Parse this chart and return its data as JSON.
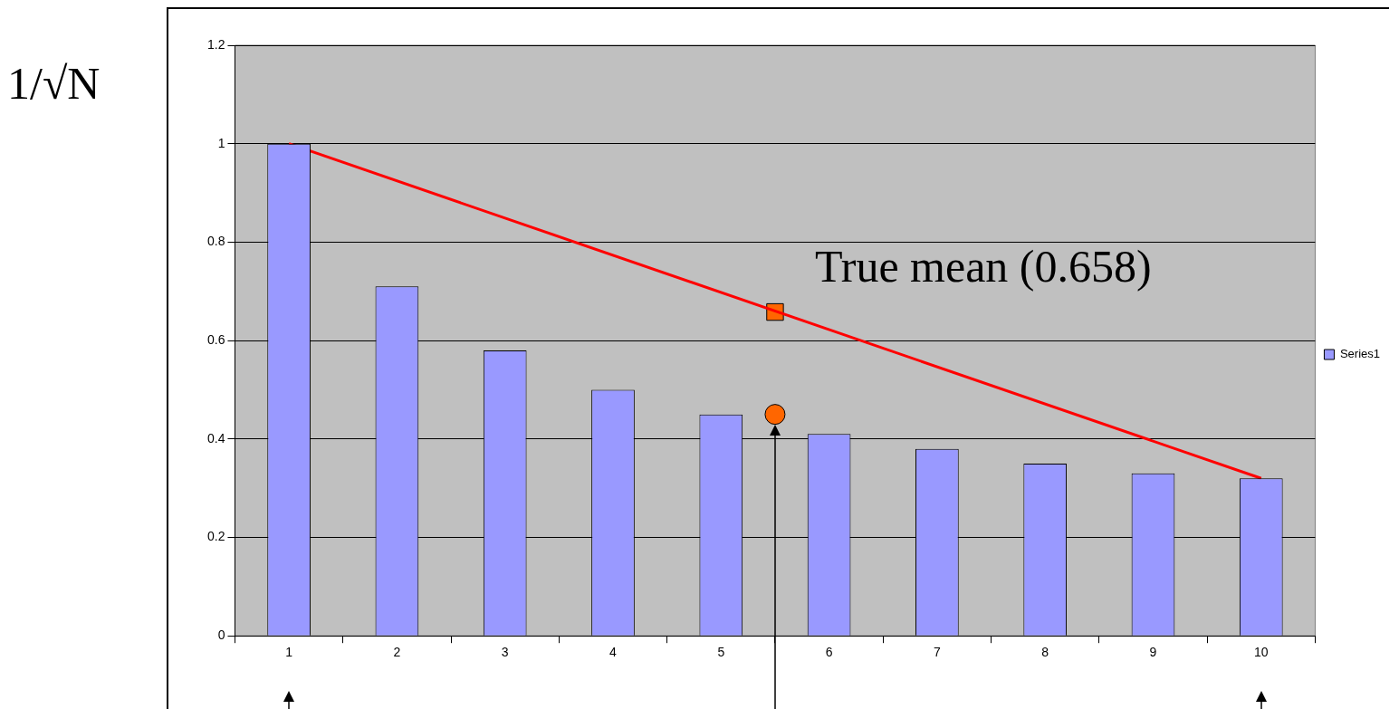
{
  "chart_data": {
    "type": "bar",
    "ylabel": "1/√N",
    "x": [
      1,
      2,
      3,
      4,
      5,
      6,
      7,
      8,
      9,
      10
    ],
    "xlim": [
      0.5,
      10.5
    ],
    "xticks": [
      1,
      2,
      3,
      4,
      5,
      6,
      7,
      8,
      9,
      10
    ],
    "ylim": [
      0,
      1.2
    ],
    "yticks": [
      0,
      0.2,
      0.4,
      0.6,
      0.8,
      1,
      1.2
    ],
    "grid": "y",
    "legend": "right",
    "series": [
      {
        "name": "Series1",
        "color": "#9999ff",
        "values": [
          1,
          0.71,
          0.58,
          0.5,
          0.45,
          0.41,
          0.38,
          0.35,
          0.33,
          0.32
        ]
      },
      {
        "type": "line",
        "color": "#ff0000",
        "x": [
          1,
          10
        ],
        "values": [
          1,
          0.32
        ],
        "marker": "none"
      },
      {
        "type": "scatter",
        "color": "#ff6600",
        "x": [
          5.5
        ],
        "values": [
          0.658
        ],
        "marker": "square"
      },
      {
        "type": "scatter",
        "color": "#ff6600",
        "x": [
          5.5
        ],
        "values": [
          0.45
        ],
        "marker": "circle"
      }
    ],
    "annotations": [
      {
        "text": "True mean (0.658)",
        "x": 5.5,
        "y": 0.658
      }
    ]
  }
}
